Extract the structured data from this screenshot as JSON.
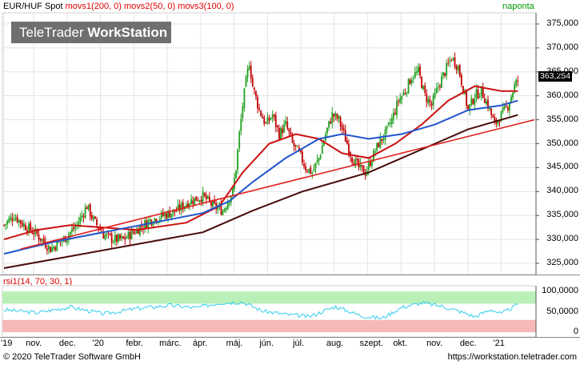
{
  "header": {
    "instrument": "EUR/HUF Spot",
    "study1": "movs1(200, 0)",
    "study2": "movs2(50, 0)",
    "study3": "movs3(100, 0)",
    "period": "naponta",
    "last_price": "363,254"
  },
  "watermark": {
    "brand_light": "TeleTrader ",
    "brand_bold": "WorkStation"
  },
  "rsi_panel": {
    "label": "rsi1(14, 70, 30, 1)"
  },
  "footer": {
    "copyright": "© 2020 TeleTrader Software GmbH",
    "url": "https://workstation.teletrader.com"
  },
  "colors": {
    "candle_up": "#20a020",
    "candle_down": "#c00000",
    "movs1": "#4a0a0a",
    "movs2": "#cc1111",
    "movs3": "#2255cc",
    "trendline": "#e02020",
    "rsi_line": "#33ccee",
    "rsi_over": "#b8f0b8",
    "rsi_under": "#f6b8b8"
  },
  "chart_data": [
    {
      "type": "candlestick",
      "ylim": [
        323,
        377
      ],
      "y_ticks": [
        "325,000",
        "330,000",
        "335,000",
        "340,000",
        "345,000",
        "350,000",
        "355,000",
        "360,000",
        "365,000",
        "370,000",
        "375,000"
      ],
      "x_ticks": [
        "'19",
        "nov.",
        "dec.",
        "'20",
        "febr.",
        "márc.",
        "ápr.",
        "máj.",
        "jún.",
        "júl.",
        "aug.",
        "szept.",
        "okt.",
        "nov.",
        "dec.",
        "'21"
      ],
      "close_path": [
        [
          0,
          333
        ],
        [
          3,
          335
        ],
        [
          6,
          333
        ],
        [
          10,
          331
        ],
        [
          14,
          328
        ],
        [
          18,
          330
        ],
        [
          22,
          333
        ],
        [
          25,
          337
        ],
        [
          27,
          334
        ],
        [
          30,
          331
        ],
        [
          33,
          330
        ],
        [
          36,
          330
        ],
        [
          40,
          332
        ],
        [
          44,
          334
        ],
        [
          48,
          335
        ],
        [
          52,
          336
        ],
        [
          56,
          338
        ],
        [
          60,
          339
        ],
        [
          63,
          337
        ],
        [
          66,
          336
        ],
        [
          69,
          340
        ],
        [
          70,
          345
        ],
        [
          71,
          352
        ],
        [
          72,
          358
        ],
        [
          73,
          363
        ],
        [
          74,
          367
        ],
        [
          75,
          362
        ],
        [
          77,
          357
        ],
        [
          79,
          354
        ],
        [
          81,
          356
        ],
        [
          83,
          352
        ],
        [
          85,
          354
        ],
        [
          87,
          350
        ],
        [
          89,
          348
        ],
        [
          91,
          345
        ],
        [
          93,
          344
        ],
        [
          95,
          347
        ],
        [
          97,
          352
        ],
        [
          99,
          356
        ],
        [
          101,
          355
        ],
        [
          103,
          351
        ],
        [
          105,
          347
        ],
        [
          107,
          345
        ],
        [
          109,
          344
        ],
        [
          111,
          347
        ],
        [
          113,
          350
        ],
        [
          115,
          352
        ],
        [
          117,
          355
        ],
        [
          119,
          359
        ],
        [
          121,
          361
        ],
        [
          123,
          364
        ],
        [
          125,
          365
        ],
        [
          127,
          360
        ],
        [
          129,
          358
        ],
        [
          131,
          362
        ],
        [
          133,
          365
        ],
        [
          135,
          368
        ],
        [
          137,
          366
        ],
        [
          139,
          360
        ],
        [
          140,
          357
        ],
        [
          142,
          360
        ],
        [
          144,
          361
        ],
        [
          146,
          358
        ],
        [
          147,
          356
        ],
        [
          148,
          354
        ],
        [
          150,
          356
        ],
        [
          152,
          358
        ],
        [
          154,
          362
        ],
        [
          155,
          363.25
        ]
      ],
      "series": [
        {
          "name": "movs1(200, 0)",
          "points": [
            [
              0,
              324
            ],
            [
              20,
              326.5
            ],
            [
              40,
              329
            ],
            [
              60,
              331.5
            ],
            [
              75,
              336
            ],
            [
              90,
              340
            ],
            [
              110,
              344
            ],
            [
              120,
              347
            ],
            [
              130,
              350
            ],
            [
              140,
              353
            ],
            [
              150,
              355
            ],
            [
              155,
              356
            ]
          ]
        },
        {
          "name": "movs2(50, 0)",
          "points": [
            [
              0,
              330
            ],
            [
              10,
              332
            ],
            [
              20,
              333
            ],
            [
              30,
              332.5
            ],
            [
              40,
              332
            ],
            [
              55,
              333.5
            ],
            [
              65,
              337
            ],
            [
              72,
              344
            ],
            [
              80,
              350
            ],
            [
              88,
              352
            ],
            [
              95,
              351
            ],
            [
              102,
              348
            ],
            [
              110,
              347
            ],
            [
              118,
              350
            ],
            [
              126,
              354
            ],
            [
              134,
              359
            ],
            [
              142,
              362
            ],
            [
              150,
              361
            ],
            [
              155,
              361
            ]
          ]
        },
        {
          "name": "movs3(100, 0)",
          "points": [
            [
              0,
              327
            ],
            [
              15,
              329.5
            ],
            [
              30,
              331.5
            ],
            [
              45,
              333.5
            ],
            [
              60,
              335.5
            ],
            [
              68,
              338
            ],
            [
              75,
              342
            ],
            [
              85,
              347
            ],
            [
              95,
              351
            ],
            [
              102,
              352
            ],
            [
              110,
              351
            ],
            [
              120,
              352
            ],
            [
              130,
              354
            ],
            [
              140,
              357
            ],
            [
              150,
              358
            ],
            [
              155,
              359
            ]
          ]
        },
        {
          "name": "trendline",
          "points": [
            [
              5,
              328
            ],
            [
              160,
              355
            ]
          ]
        }
      ]
    },
    {
      "type": "line",
      "ylim": [
        0,
        100
      ],
      "y_ticks": [
        "0",
        "50,0000",
        "100,0000"
      ],
      "bands": {
        "upper": 70,
        "lower": 30
      },
      "points": [
        [
          0,
          55
        ],
        [
          10,
          48
        ],
        [
          20,
          62
        ],
        [
          30,
          45
        ],
        [
          40,
          58
        ],
        [
          50,
          66
        ],
        [
          58,
          60
        ],
        [
          65,
          72
        ],
        [
          72,
          74
        ],
        [
          78,
          52
        ],
        [
          85,
          44
        ],
        [
          92,
          38
        ],
        [
          100,
          63
        ],
        [
          108,
          40
        ],
        [
          114,
          34
        ],
        [
          120,
          61
        ],
        [
          126,
          72
        ],
        [
          132,
          64
        ],
        [
          138,
          50
        ],
        [
          142,
          38
        ],
        [
          147,
          56
        ],
        [
          150,
          45
        ],
        [
          155,
          68
        ]
      ]
    }
  ]
}
